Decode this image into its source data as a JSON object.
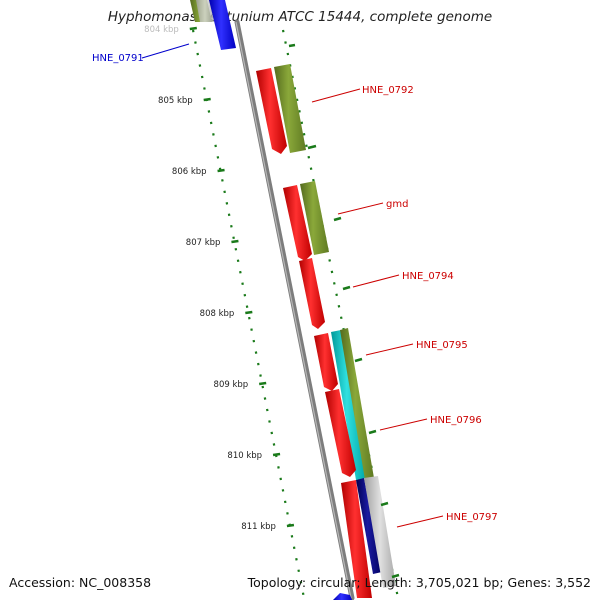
{
  "title": "Hyphomonas neptunium ATCC 15444, complete genome",
  "footer": {
    "accession": "Accession: NC_008358",
    "summary": "Topology: circular; Length: 3,705,021 bp; Genes: 3,552"
  },
  "ruler": {
    "ticks": [
      "804 kbp",
      "805 kbp",
      "806 kbp",
      "807 kbp",
      "808 kbp",
      "809 kbp",
      "810 kbp",
      "811 kbp"
    ]
  },
  "gene_labels": [
    {
      "name": "HNE_0791",
      "color": "#0000cc"
    },
    {
      "name": "HNE_0792",
      "color": "#cc0000"
    },
    {
      "name": "gmd",
      "color": "#cc0000"
    },
    {
      "name": "HNE_0794",
      "color": "#cc0000"
    },
    {
      "name": "HNE_0795",
      "color": "#cc0000"
    },
    {
      "name": "HNE_0796",
      "color": "#cc0000"
    },
    {
      "name": "HNE_0797",
      "color": "#cc0000"
    }
  ],
  "colors": {
    "cds_forward": "#ff0000",
    "cds_reverse": "#0000ff",
    "feature_olive": "#6b8e23",
    "feature_cyan": "#00c8c8",
    "feature_navy": "#000080",
    "backbone": "#808080",
    "tick": "#1a7a1a"
  }
}
